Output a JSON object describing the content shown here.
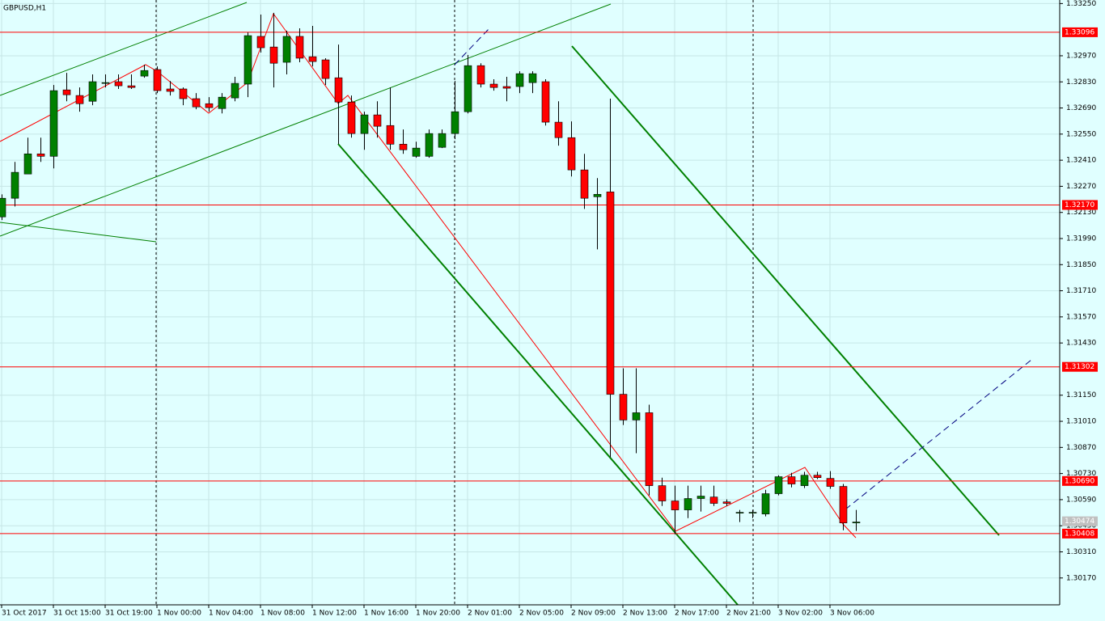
{
  "chart_data": {
    "type": "candlestick",
    "title": "GBPUSD,H1",
    "categories": [
      "31 Oct 2017",
      null,
      null,
      null,
      "31 Oct 15:00",
      null,
      null,
      null,
      "31 Oct 19:00",
      null,
      null,
      null,
      "1 Nov 00:00",
      null,
      null,
      null,
      "1 Nov 04:00",
      null,
      null,
      null,
      "1 Nov 08:00",
      null,
      null,
      null,
      "1 Nov 12:00",
      null,
      null,
      null,
      "1 Nov 16:00",
      null,
      null,
      null,
      "1 Nov 20:00",
      null,
      null,
      null,
      "2 Nov 01:00",
      null,
      null,
      null,
      "2 Nov 05:00",
      null,
      null,
      null,
      "2 Nov 09:00",
      null,
      null,
      null,
      "2 Nov 13:00",
      null,
      null,
      null,
      "2 Nov 17:00",
      null,
      null,
      null,
      "2 Nov 21:00",
      null,
      null,
      null,
      "3 Nov 02:00",
      null,
      null,
      null,
      "3 Nov 06:00",
      null,
      null
    ],
    "open": [
      1.32106,
      1.32206,
      1.32336,
      1.32444,
      1.32431,
      1.32787,
      1.32757,
      1.32726,
      1.32822,
      1.32831,
      1.32809,
      1.32861,
      1.32896,
      1.32792,
      1.32792,
      1.3274,
      1.32713,
      1.32687,
      1.32744,
      1.32818,
      1.33074,
      1.33017,
      1.32935,
      1.33074,
      1.32965,
      1.32948,
      1.32852,
      1.32722,
      1.32553,
      1.32653,
      1.32596,
      1.32496,
      1.32431,
      1.32431,
      1.32479,
      1.32553,
      1.3267,
      1.32917,
      1.32818,
      1.32805,
      1.32805,
      1.32826,
      1.32831,
      1.32614,
      1.32531,
      1.32358,
      1.32214,
      1.3224,
      1.31155,
      1.31017,
      1.31056,
      1.30665,
      1.30583,
      1.30535,
      1.30596,
      1.30604,
      1.30578,
      1.30522,
      1.30522,
      1.30513,
      1.30622,
      1.30713,
      1.30665,
      1.30721,
      1.30704,
      1.30661,
      1.30465
    ],
    "high": [
      1.32227,
      1.32401,
      1.32531,
      1.32531,
      1.32813,
      1.32878,
      1.328,
      1.3287,
      1.3287,
      1.3287,
      1.3287,
      1.32922,
      1.32913,
      1.32835,
      1.328,
      1.3277,
      1.32748,
      1.3277,
      1.32857,
      1.33095,
      1.33191,
      1.332,
      1.33104,
      1.33117,
      1.3313,
      1.32957,
      1.3303,
      1.32757,
      1.3267,
      1.32726,
      1.328,
      1.32575,
      1.32509,
      1.32575,
      1.32575,
      1.32835,
      1.32974,
      1.3293,
      1.32844,
      1.32857,
      1.32887,
      1.32887,
      1.32844,
      1.32726,
      1.32618,
      1.32444,
      1.32314,
      1.3274,
      1.31294,
      1.31294,
      1.31099,
      1.30708,
      1.30665,
      1.30665,
      1.30665,
      1.30665,
      1.30591,
      1.30535,
      1.30535,
      1.30643,
      1.30721,
      1.30734,
      1.30739,
      1.30739,
      1.30743,
      1.30674,
      1.30535
    ],
    "low": [
      1.32089,
      1.32162,
      1.32336,
      1.32401,
      1.32366,
      1.32726,
      1.3267,
      1.32705,
      1.328,
      1.32792,
      1.32792,
      1.32852,
      1.3277,
      1.32757,
      1.32705,
      1.32683,
      1.3267,
      1.32661,
      1.32726,
      1.32748,
      1.32987,
      1.328,
      1.3287,
      1.32935,
      1.32913,
      1.32813,
      1.32496,
      1.32531,
      1.32466,
      1.32531,
      1.32466,
      1.32444,
      1.32423,
      1.32423,
      1.32475,
      1.32523,
      1.32661,
      1.328,
      1.32783,
      1.32726,
      1.3277,
      1.3277,
      1.32596,
      1.32488,
      1.32323,
      1.32149,
      1.31932,
      1.30817,
      1.3099,
      1.30839,
      1.30613,
      1.30556,
      1.30405,
      1.30491,
      1.30526,
      1.30556,
      1.30556,
      1.3047,
      1.30491,
      1.305,
      1.30613,
      1.30656,
      1.30652,
      1.307,
      1.30648,
      1.30426,
      1.30422
    ],
    "close": [
      1.32206,
      1.32345,
      1.32444,
      1.32431,
      1.32783,
      1.32761,
      1.32713,
      1.32831,
      1.32826,
      1.32809,
      1.328,
      1.32891,
      1.32783,
      1.32779,
      1.3274,
      1.32696,
      1.32692,
      1.32748,
      1.32822,
      1.33078,
      1.33013,
      1.3293,
      1.33074,
      1.32957,
      1.32939,
      1.32848,
      1.32722,
      1.32553,
      1.32653,
      1.32592,
      1.32496,
      1.32466,
      1.32475,
      1.32553,
      1.32553,
      1.3267,
      1.32917,
      1.32818,
      1.328,
      1.32796,
      1.32874,
      1.32874,
      1.32614,
      1.32531,
      1.32358,
      1.32206,
      1.32227,
      1.31155,
      1.31017,
      1.31056,
      1.30665,
      1.30583,
      1.30535,
      1.30596,
      1.30609,
      1.3057,
      1.3057,
      1.30522,
      1.30522,
      1.30622,
      1.30713,
      1.30674,
      1.30721,
      1.30708,
      1.30661,
      1.30465,
      1.3047
    ],
    "up_color": "#008000",
    "down_color": "#ff0000",
    "ylim": [
      1.30026,
      1.33269
    ],
    "yticks": [
      {
        "value": 1.3325,
        "label": "1.33250"
      },
      {
        "value": 1.3297,
        "label": "1.32970"
      },
      {
        "value": 1.3283,
        "label": "1.32830"
      },
      {
        "value": 1.3269,
        "label": "1.32690"
      },
      {
        "value": 1.3255,
        "label": "1.32550"
      },
      {
        "value": 1.3241,
        "label": "1.32410"
      },
      {
        "value": 1.3227,
        "label": "1.32270"
      },
      {
        "value": 1.3213,
        "label": "1.32130"
      },
      {
        "value": 1.3199,
        "label": "1.31990"
      },
      {
        "value": 1.3185,
        "label": "1.31850"
      },
      {
        "value": 1.3171,
        "label": "1.31710"
      },
      {
        "value": 1.3157,
        "label": "1.31570"
      },
      {
        "value": 1.3143,
        "label": "1.31430"
      },
      {
        "value": 1.3115,
        "label": "1.31150"
      },
      {
        "value": 1.3101,
        "label": "1.31010"
      },
      {
        "value": 1.3087,
        "label": "1.30870"
      },
      {
        "value": 1.3073,
        "label": "1.30730"
      },
      {
        "value": 1.3059,
        "label": "1.30590"
      },
      {
        "value": 1.3045,
        "label": "1.30450"
      },
      {
        "value": 1.3031,
        "label": "1.30310"
      },
      {
        "value": 1.3017,
        "label": "1.30170"
      }
    ],
    "grid": true,
    "price_lines": [
      {
        "value": 1.33096,
        "label": "1.33096"
      },
      {
        "value": 1.3217,
        "label": "1.32170"
      },
      {
        "value": 1.31302,
        "label": "1.31302"
      },
      {
        "value": 1.3069,
        "label": "1.30690"
      },
      {
        "value": 1.30408,
        "label": "1.30408"
      }
    ],
    "price_line_color": "#ff0000",
    "bid": {
      "value": 1.30474,
      "label": "1.30474"
    },
    "bid_color": "#c0c0c0"
  }
}
